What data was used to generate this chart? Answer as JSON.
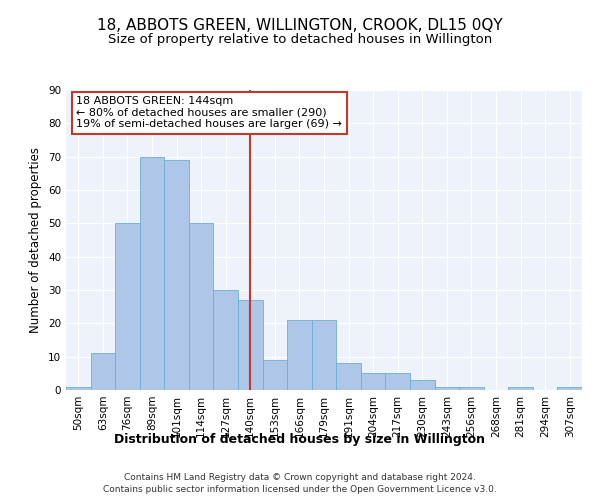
{
  "title": "18, ABBOTS GREEN, WILLINGTON, CROOK, DL15 0QY",
  "subtitle": "Size of property relative to detached houses in Willington",
  "xlabel": "Distribution of detached houses by size in Willington",
  "ylabel": "Number of detached properties",
  "bin_labels": [
    "50sqm",
    "63sqm",
    "76sqm",
    "89sqm",
    "101sqm",
    "114sqm",
    "127sqm",
    "140sqm",
    "153sqm",
    "166sqm",
    "179sqm",
    "191sqm",
    "204sqm",
    "217sqm",
    "230sqm",
    "243sqm",
    "256sqm",
    "268sqm",
    "281sqm",
    "294sqm",
    "307sqm"
  ],
  "bar_values": [
    1,
    11,
    50,
    70,
    69,
    50,
    30,
    27,
    9,
    21,
    21,
    8,
    5,
    5,
    3,
    1,
    1,
    0,
    1,
    0,
    1
  ],
  "bar_color": "#aec6e8",
  "bar_edge_color": "#6baed6",
  "vline_color": "#c0392b",
  "vline_index": 7.5,
  "annotation_text": "18 ABBOTS GREEN: 144sqm\n← 80% of detached houses are smaller (290)\n19% of semi-detached houses are larger (69) →",
  "annotation_box_color": "#ffffff",
  "annotation_box_edge": "#c0392b",
  "ylim": [
    0,
    90
  ],
  "yticks": [
    0,
    10,
    20,
    30,
    40,
    50,
    60,
    70,
    80,
    90
  ],
  "background_color": "#eef2fb",
  "grid_color": "#ffffff",
  "footer_line1": "Contains HM Land Registry data © Crown copyright and database right 2024.",
  "footer_line2": "Contains public sector information licensed under the Open Government Licence v3.0.",
  "title_fontsize": 11,
  "subtitle_fontsize": 9.5,
  "xlabel_fontsize": 9,
  "ylabel_fontsize": 8.5,
  "tick_fontsize": 7.5,
  "annotation_fontsize": 8,
  "footer_fontsize": 6.5
}
